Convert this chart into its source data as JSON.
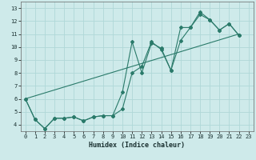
{
  "xlabel": "Humidex (Indice chaleur)",
  "bg_color": "#ceeaea",
  "grid_color": "#b0d8d8",
  "line_color": "#2a7a6a",
  "xlim": [
    -0.5,
    23.5
  ],
  "ylim": [
    3.5,
    13.5
  ],
  "xticks": [
    0,
    1,
    2,
    3,
    4,
    5,
    6,
    7,
    8,
    9,
    10,
    11,
    12,
    13,
    14,
    15,
    16,
    17,
    18,
    19,
    20,
    21,
    22,
    23
  ],
  "yticks": [
    4,
    5,
    6,
    7,
    8,
    9,
    10,
    11,
    12,
    13
  ],
  "series1_x": [
    0,
    1,
    2,
    3,
    4,
    5,
    6,
    7,
    8,
    9,
    10,
    11,
    12,
    13,
    14,
    15,
    16,
    17,
    18,
    19,
    20,
    21,
    22
  ],
  "series1_y": [
    6.0,
    4.4,
    3.7,
    4.5,
    4.5,
    4.6,
    4.3,
    4.6,
    4.7,
    4.7,
    5.2,
    8.0,
    8.5,
    10.4,
    9.8,
    8.2,
    10.5,
    11.5,
    12.7,
    12.1,
    11.3,
    11.8,
    10.9
  ],
  "series2_x": [
    0,
    1,
    2,
    3,
    4,
    5,
    6,
    7,
    8,
    9,
    10,
    11,
    12,
    13,
    14,
    15,
    16,
    17,
    18,
    19,
    20,
    21,
    22
  ],
  "series2_y": [
    6.0,
    4.4,
    3.7,
    4.5,
    4.5,
    4.6,
    4.3,
    4.6,
    4.7,
    4.7,
    6.5,
    10.4,
    8.0,
    10.3,
    9.9,
    8.2,
    11.5,
    11.5,
    12.5,
    12.1,
    11.3,
    11.8,
    10.9
  ],
  "series3_x": [
    0,
    22
  ],
  "series3_y": [
    6.0,
    11.0
  ]
}
